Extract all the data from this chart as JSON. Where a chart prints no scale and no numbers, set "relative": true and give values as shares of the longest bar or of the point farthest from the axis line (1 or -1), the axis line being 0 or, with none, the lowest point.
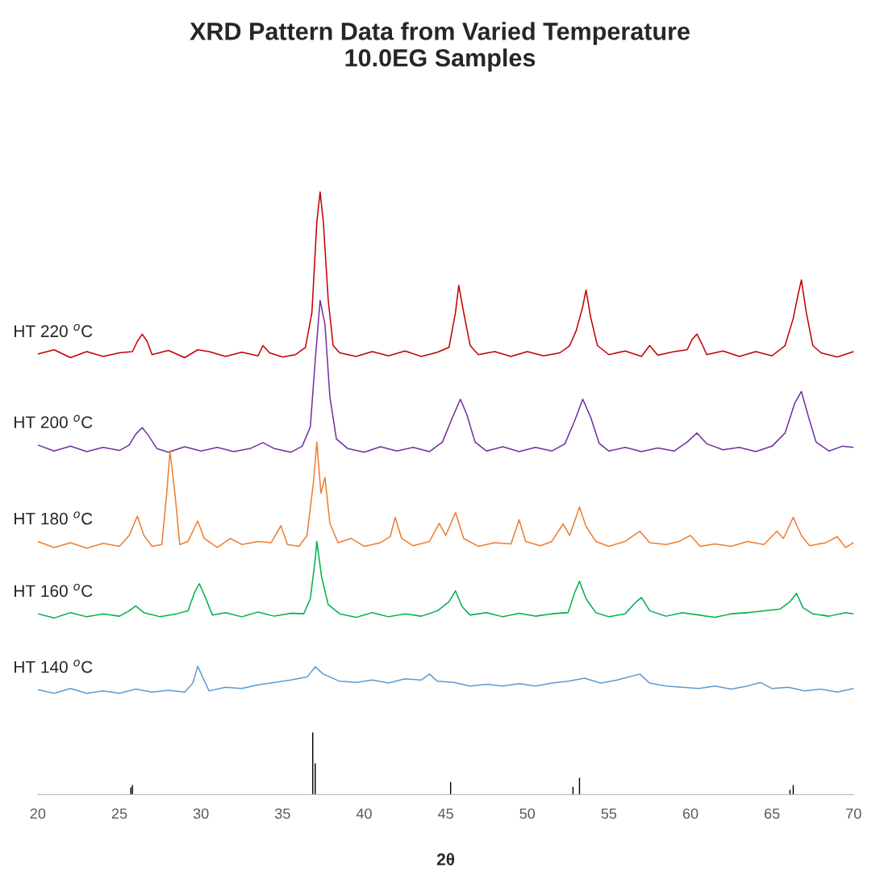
{
  "chart_data": {
    "type": "line",
    "relative": true,
    "title": "XRD Pattern Data from Varied Temperature\n10.0EG Samples",
    "xlabel": "2θ",
    "xlim": [
      20,
      70
    ],
    "xticks": [
      20,
      25,
      30,
      35,
      40,
      45,
      50,
      55,
      60,
      65,
      70
    ],
    "grid": false,
    "legend": false,
    "marker": "none",
    "line_style": "solid",
    "tick_labels": "x",
    "series": [
      {
        "name": "HT 220 $^{o}$C",
        "color": "#c00000",
        "x": [
          20,
          21,
          22,
          23,
          24,
          25,
          25.8,
          26.1,
          26.4,
          26.7,
          27.0,
          28,
          29,
          29.8,
          30.5,
          31.5,
          32.5,
          33.5,
          33.8,
          34.2,
          35,
          35.8,
          36.4,
          36.8,
          37.1,
          37.3,
          37.5,
          37.8,
          38.1,
          38.5,
          39.5,
          40.5,
          41.5,
          42.5,
          43.5,
          44.5,
          45.2,
          45.6,
          45.8,
          46.1,
          46.5,
          47,
          48,
          49,
          50,
          51,
          52,
          52.6,
          53.0,
          53.4,
          53.6,
          53.9,
          54.3,
          55,
          56,
          57,
          57.5,
          58,
          59,
          59.8,
          60.1,
          60.4,
          60.7,
          61,
          62,
          63,
          64,
          65,
          65.8,
          66.3,
          66.6,
          66.8,
          67.1,
          67.5,
          68,
          69,
          70
        ],
        "values": [
          0.731,
          0.738,
          0.725,
          0.735,
          0.727,
          0.733,
          0.735,
          0.752,
          0.764,
          0.752,
          0.73,
          0.737,
          0.725,
          0.738,
          0.735,
          0.727,
          0.734,
          0.728,
          0.745,
          0.733,
          0.726,
          0.73,
          0.742,
          0.8,
          0.95,
          1.0,
          0.95,
          0.82,
          0.745,
          0.733,
          0.727,
          0.735,
          0.728,
          0.736,
          0.727,
          0.734,
          0.742,
          0.8,
          0.845,
          0.8,
          0.745,
          0.73,
          0.735,
          0.727,
          0.735,
          0.728,
          0.733,
          0.745,
          0.77,
          0.81,
          0.837,
          0.79,
          0.745,
          0.73,
          0.736,
          0.727,
          0.745,
          0.729,
          0.735,
          0.738,
          0.755,
          0.764,
          0.748,
          0.73,
          0.736,
          0.727,
          0.735,
          0.728,
          0.745,
          0.79,
          0.83,
          0.854,
          0.8,
          0.745,
          0.733,
          0.726,
          0.735
        ]
      },
      {
        "name": "HT 200 $^{o}$C",
        "color": "#7030a0",
        "x": [
          20,
          21,
          22,
          23,
          24,
          25,
          25.6,
          26.0,
          26.4,
          26.8,
          27.3,
          28,
          29,
          30,
          31,
          32,
          33,
          33.8,
          34.5,
          35.5,
          36.2,
          36.7,
          37.0,
          37.3,
          37.6,
          37.9,
          38.3,
          39,
          40,
          41,
          42,
          43,
          44,
          44.8,
          45.4,
          45.9,
          46.3,
          46.8,
          47.5,
          48.5,
          49.5,
          50.5,
          51.5,
          52.3,
          52.9,
          53.4,
          53.9,
          54.4,
          55,
          56,
          57,
          58,
          59,
          59.8,
          60.4,
          61,
          62,
          63,
          64,
          65,
          65.8,
          66.4,
          66.8,
          67.2,
          67.7,
          68.5,
          69.3,
          70
        ],
        "values": [
          0.58,
          0.57,
          0.578,
          0.569,
          0.576,
          0.571,
          0.58,
          0.598,
          0.609,
          0.595,
          0.574,
          0.568,
          0.577,
          0.57,
          0.576,
          0.569,
          0.574,
          0.584,
          0.574,
          0.568,
          0.578,
          0.61,
          0.72,
          0.82,
          0.78,
          0.66,
          0.59,
          0.574,
          0.568,
          0.577,
          0.57,
          0.576,
          0.569,
          0.585,
          0.625,
          0.656,
          0.63,
          0.585,
          0.57,
          0.577,
          0.569,
          0.576,
          0.57,
          0.582,
          0.62,
          0.656,
          0.625,
          0.583,
          0.57,
          0.576,
          0.569,
          0.575,
          0.57,
          0.585,
          0.6,
          0.582,
          0.572,
          0.576,
          0.569,
          0.578,
          0.6,
          0.65,
          0.669,
          0.63,
          0.585,
          0.57,
          0.578,
          0.576
        ]
      },
      {
        "name": "HT 180 $^{o}$C",
        "color": "#ed7d31",
        "x": [
          20,
          21,
          22,
          23,
          24,
          25,
          25.6,
          26.1,
          26.5,
          27,
          27.6,
          27.9,
          28.1,
          28.4,
          28.7,
          29.2,
          29.8,
          30.2,
          31,
          31.8,
          32.5,
          33.5,
          34.3,
          34.9,
          35.3,
          36,
          36.5,
          36.9,
          37.1,
          37.35,
          37.6,
          37.9,
          38.4,
          39.2,
          40,
          41,
          41.6,
          41.9,
          42.3,
          43,
          44,
          44.6,
          45.0,
          45.6,
          46.1,
          47,
          48,
          49,
          49.5,
          49.9,
          50.8,
          51.5,
          52.2,
          52.6,
          53.2,
          53.6,
          54.2,
          55,
          56,
          56.9,
          57.5,
          58.5,
          59.3,
          60.0,
          60.6,
          61.5,
          62.5,
          63.5,
          64.5,
          65.3,
          65.7,
          66.3,
          66.8,
          67.3,
          68.3,
          69,
          69.5,
          70
        ],
        "values": [
          0.42,
          0.41,
          0.418,
          0.409,
          0.417,
          0.412,
          0.43,
          0.462,
          0.43,
          0.412,
          0.415,
          0.5,
          0.57,
          0.5,
          0.415,
          0.42,
          0.454,
          0.425,
          0.41,
          0.425,
          0.415,
          0.42,
          0.418,
          0.446,
          0.415,
          0.412,
          0.43,
          0.52,
          0.585,
          0.5,
          0.526,
          0.45,
          0.418,
          0.425,
          0.412,
          0.418,
          0.428,
          0.46,
          0.425,
          0.413,
          0.42,
          0.45,
          0.43,
          0.468,
          0.425,
          0.412,
          0.418,
          0.416,
          0.456,
          0.42,
          0.413,
          0.42,
          0.449,
          0.43,
          0.477,
          0.445,
          0.42,
          0.412,
          0.42,
          0.437,
          0.418,
          0.415,
          0.42,
          0.43,
          0.412,
          0.416,
          0.412,
          0.42,
          0.415,
          0.437,
          0.425,
          0.46,
          0.43,
          0.413,
          0.418,
          0.428,
          0.41,
          0.418
        ]
      },
      {
        "name": "HT 160 $^{o}$C",
        "color": "#00b050",
        "x": [
          20,
          21,
          22,
          23,
          24,
          25,
          25.6,
          26.0,
          26.5,
          27.5,
          28.5,
          29.2,
          29.6,
          29.9,
          30.3,
          30.7,
          31.5,
          32.5,
          33.5,
          34.5,
          35.5,
          36.3,
          36.7,
          37.0,
          37.1,
          37.4,
          37.8,
          38.5,
          39.5,
          40.5,
          41.5,
          42.5,
          43.5,
          44.5,
          45.2,
          45.6,
          46.0,
          46.5,
          47.5,
          48.5,
          49.5,
          50.5,
          51.5,
          52.5,
          52.9,
          53.2,
          53.6,
          54.2,
          55,
          56,
          56.6,
          57.0,
          57.5,
          58.5,
          59.5,
          60.5,
          61.5,
          62.5,
          63.5,
          64.5,
          65.5,
          66.1,
          66.5,
          66.9,
          67.5,
          68.5,
          69.5,
          70
        ],
        "values": [
          0.3,
          0.293,
          0.302,
          0.295,
          0.3,
          0.296,
          0.305,
          0.313,
          0.302,
          0.295,
          0.3,
          0.305,
          0.335,
          0.35,
          0.325,
          0.298,
          0.302,
          0.295,
          0.303,
          0.296,
          0.301,
          0.3,
          0.325,
          0.39,
          0.42,
          0.36,
          0.315,
          0.3,
          0.294,
          0.302,
          0.295,
          0.3,
          0.296,
          0.305,
          0.32,
          0.338,
          0.312,
          0.298,
          0.302,
          0.295,
          0.301,
          0.296,
          0.3,
          0.302,
          0.335,
          0.354,
          0.325,
          0.302,
          0.295,
          0.3,
          0.318,
          0.327,
          0.305,
          0.296,
          0.302,
          0.298,
          0.294,
          0.3,
          0.302,
          0.305,
          0.308,
          0.32,
          0.334,
          0.31,
          0.3,
          0.296,
          0.302,
          0.3
        ]
      },
      {
        "name": "HT 140 $^{o}$C",
        "color": "#5b9bd5",
        "x": [
          20,
          21,
          22,
          23,
          24,
          25,
          26,
          27,
          28,
          29,
          29.5,
          29.8,
          30.1,
          30.5,
          31.5,
          32.5,
          33.5,
          34.5,
          35.5,
          36.5,
          37.0,
          37.5,
          38.5,
          39.5,
          40.5,
          41.5,
          42.5,
          43.5,
          44,
          44.5,
          45.5,
          46.5,
          47.5,
          48.5,
          49.5,
          50.5,
          51.5,
          52.5,
          53.5,
          54.5,
          55.5,
          56.9,
          57.5,
          58.5,
          59.5,
          60.5,
          61.5,
          62.5,
          63.5,
          64.3,
          65,
          66,
          67,
          68,
          69,
          70
        ],
        "values": [
          0.174,
          0.168,
          0.176,
          0.168,
          0.172,
          0.168,
          0.175,
          0.17,
          0.173,
          0.17,
          0.185,
          0.213,
          0.195,
          0.172,
          0.178,
          0.176,
          0.182,
          0.186,
          0.19,
          0.195,
          0.212,
          0.2,
          0.188,
          0.186,
          0.19,
          0.185,
          0.192,
          0.19,
          0.2,
          0.188,
          0.186,
          0.18,
          0.183,
          0.18,
          0.184,
          0.18,
          0.185,
          0.188,
          0.193,
          0.185,
          0.19,
          0.2,
          0.185,
          0.18,
          0.178,
          0.176,
          0.18,
          0.175,
          0.18,
          0.186,
          0.176,
          0.178,
          0.172,
          0.175,
          0.17,
          0.176
        ]
      },
      {
        "type": "bar",
        "color": "#000000",
        "x": [
          25.7,
          25.8,
          36.85,
          37.0,
          45.3,
          52.8,
          53.2,
          66.1,
          66.3
        ],
        "values": [
          0.012,
          0.016,
          0.103,
          0.052,
          0.021,
          0.013,
          0.028,
          0.008,
          0.016
        ]
      }
    ]
  }
}
